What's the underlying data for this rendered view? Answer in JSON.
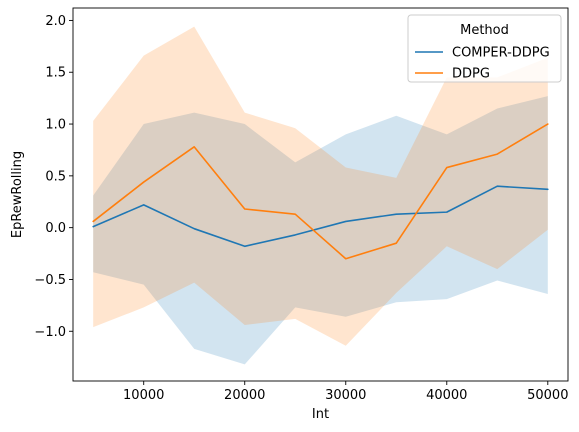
{
  "chart_data": {
    "type": "line",
    "xlabel": "Int",
    "ylabel": "EpRewRolling",
    "xlim": [
      3000,
      52000
    ],
    "ylim": [
      -1.48,
      2.12
    ],
    "xticks": [
      10000,
      20000,
      30000,
      40000,
      50000
    ],
    "xtick_labels": [
      "10000",
      "20000",
      "30000",
      "40000",
      "50000"
    ],
    "yticks": [
      -1.0,
      -0.5,
      0.0,
      0.5,
      1.0,
      1.5,
      2.0
    ],
    "ytick_labels": [
      "−1.0",
      "−0.5",
      "0.0",
      "0.5",
      "1.0",
      "1.5",
      "2.0"
    ],
    "grid": false,
    "legend": {
      "title": "Method",
      "placement": "top-right"
    },
    "x": [
      5000,
      10000,
      15000,
      20000,
      25000,
      30000,
      35000,
      40000,
      45000,
      50000
    ],
    "series": [
      {
        "name": "COMPER-DDPG",
        "color": "#1f77b4",
        "values": [
          0.01,
          0.22,
          -0.01,
          -0.18,
          -0.07,
          0.06,
          0.13,
          0.15,
          0.4,
          0.37
        ],
        "ci_upper": [
          0.31,
          1.0,
          1.11,
          1.0,
          0.63,
          0.9,
          1.08,
          0.9,
          1.15,
          1.27
        ],
        "ci_lower": [
          -0.43,
          -0.55,
          -1.17,
          -1.32,
          -0.77,
          -0.86,
          -0.72,
          -0.69,
          -0.51,
          -0.64
        ]
      },
      {
        "name": "DDPG",
        "color": "#ff7f0e",
        "values": [
          0.06,
          0.44,
          0.78,
          0.18,
          0.13,
          -0.3,
          -0.15,
          0.58,
          0.71,
          1.0
        ],
        "ci_upper": [
          1.03,
          1.66,
          1.94,
          1.11,
          0.96,
          0.58,
          0.48,
          1.45,
          1.45,
          1.64
        ],
        "ci_lower": [
          -0.96,
          -0.77,
          -0.53,
          -0.94,
          -0.88,
          -1.14,
          -0.63,
          -0.18,
          -0.4,
          -0.02
        ]
      }
    ]
  }
}
